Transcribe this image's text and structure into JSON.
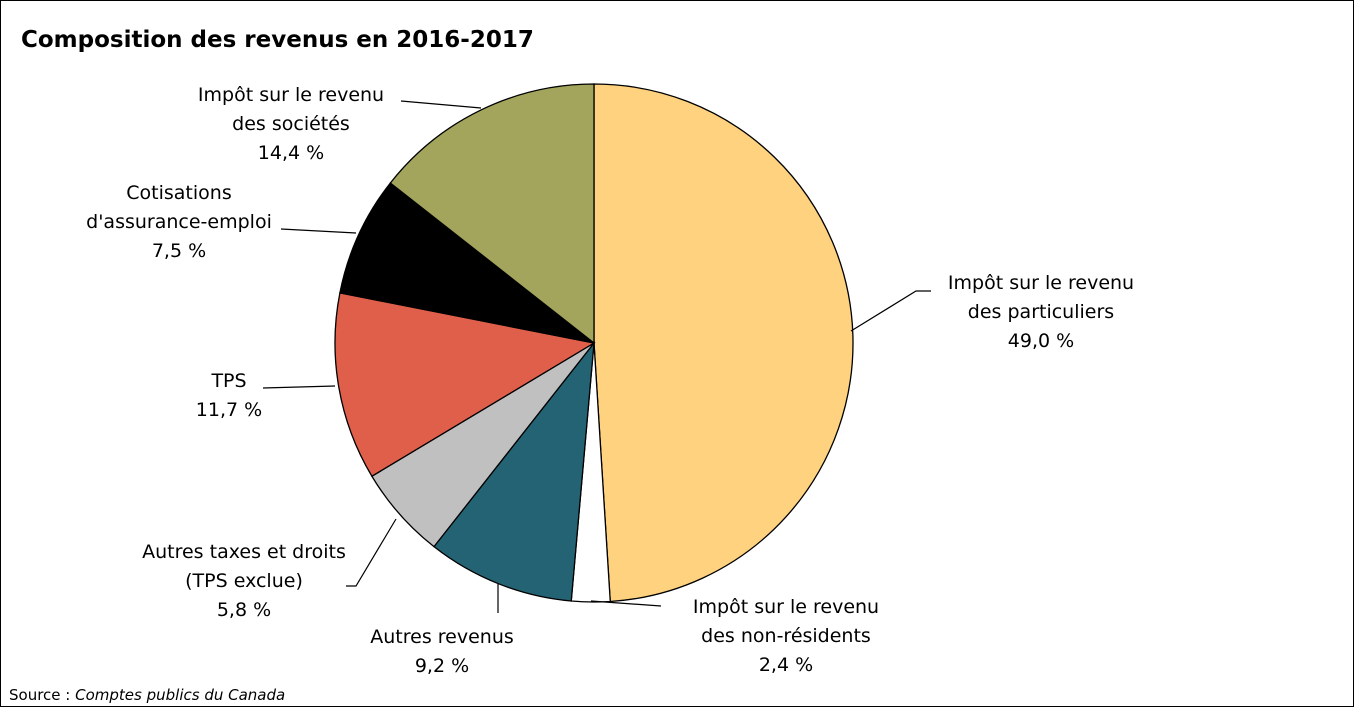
{
  "chart_data": {
    "type": "pie",
    "title": "Composition des revenus en 2016-2017",
    "categories": [
      "Impôt sur le revenu\ndes particuliers",
      "Impôt sur le revenu\ndes non-résidents",
      "Autres revenus",
      "Autres taxes et droits\n(TPS exclue)",
      "TPS",
      "Cotisations\nd'assurance-emploi",
      "Impôt sur le revenu\ndes sociétés"
    ],
    "values": [
      49.0,
      2.4,
      9.2,
      5.8,
      11.7,
      7.5,
      14.4
    ],
    "value_labels": [
      "49,0 %",
      "2,4 %",
      "9,2 %",
      "5,8 %",
      "11,7 %",
      "7,5 %",
      "14,4 %"
    ],
    "colors": [
      "#FFD27F",
      "#FFFFFF",
      "#236373",
      "#C0C0C0",
      "#E05F4B",
      "#000000",
      "#A3A55C"
    ],
    "source_label": "Source :",
    "source": "Comptes publics du Canada"
  }
}
